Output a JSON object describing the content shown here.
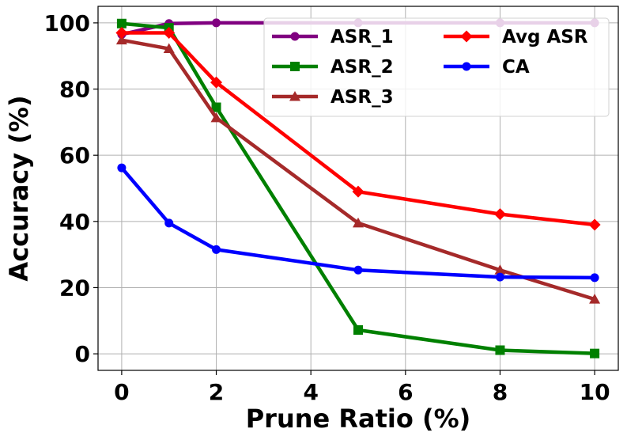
{
  "chart_data": {
    "type": "line",
    "title": "",
    "xlabel": "Prune Ratio (%)",
    "ylabel": "Accuracy (%)",
    "x": [
      0,
      1,
      2,
      5,
      8,
      10
    ],
    "xlim": [
      -0.5,
      10.5
    ],
    "ylim": [
      -5,
      105
    ],
    "xticks": [
      "0",
      "2",
      "4",
      "6",
      "8",
      "10"
    ],
    "yticks": [
      "0",
      "20",
      "40",
      "60",
      "80",
      "100"
    ],
    "grid": true,
    "legend_position": "top-right",
    "series": [
      {
        "name": "ASR_1",
        "color": "#800080",
        "marker": "circle",
        "values": [
          96.5,
          99.8,
          100,
          100,
          100,
          100
        ]
      },
      {
        "name": "ASR_2",
        "color": "#008000",
        "marker": "square",
        "values": [
          99.8,
          98.5,
          74.5,
          7.2,
          1.1,
          0.1
        ]
      },
      {
        "name": "ASR_3",
        "color": "#a52a2a",
        "marker": "triangle",
        "values": [
          94.8,
          92.2,
          71.3,
          39.5,
          25.3,
          16.5
        ]
      },
      {
        "name": "Avg ASR",
        "color": "#ff0000",
        "marker": "diamond",
        "values": [
          97.0,
          97.0,
          82.0,
          49.0,
          42.2,
          39.0
        ]
      },
      {
        "name": "CA",
        "color": "#0000ff",
        "marker": "circle",
        "values": [
          56.2,
          39.5,
          31.5,
          25.3,
          23.2,
          23.0
        ]
      }
    ]
  }
}
